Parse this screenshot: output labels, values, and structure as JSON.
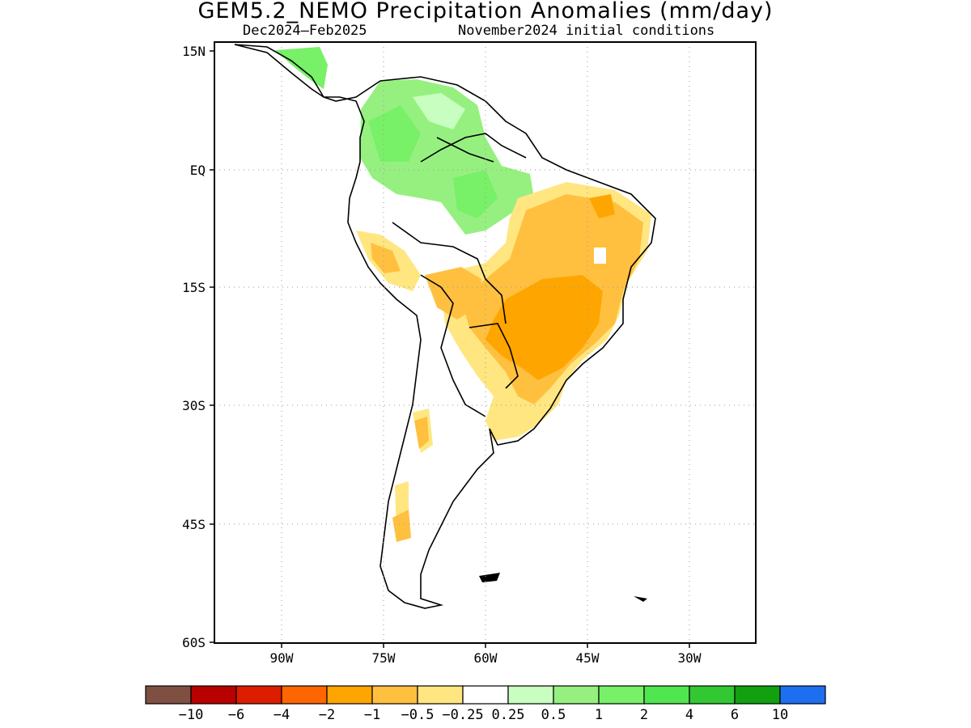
{
  "title": "GEM5.2_NEMO Precipitation Anomalies (mm/day)",
  "subtitle_left": "Dec2024–Feb2025",
  "subtitle_right": "November2024 initial conditions",
  "axes": {
    "lat_labels": [
      "15N",
      "EQ",
      "15S",
      "30S",
      "45S",
      "60S"
    ],
    "lon_labels": [
      "90W",
      "75W",
      "60W",
      "45W",
      "30W"
    ],
    "lat_range": [
      -60,
      15
    ],
    "lon_range": [
      -100,
      -20
    ]
  },
  "colorbar": {
    "colors": [
      "#7f5042",
      "#b90000",
      "#dd1c00",
      "#ff6600",
      "#ffa500",
      "#ffc040",
      "#ffe680",
      "#ffffff",
      "#c8ffc0",
      "#96f080",
      "#78f068",
      "#50e650",
      "#32c832",
      "#10a010",
      "#1e6ef0"
    ],
    "labels": [
      "−10",
      "−6",
      "−4",
      "−2",
      "−1",
      "−0.5",
      "−0.25",
      "0.25",
      "0.5",
      "1",
      "2",
      "4",
      "6",
      "10"
    ]
  }
}
